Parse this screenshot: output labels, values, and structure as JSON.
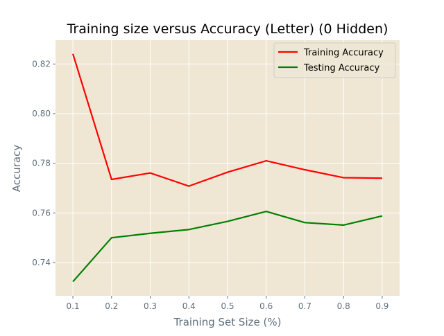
{
  "chart_data": {
    "type": "line",
    "title": "Training size versus Accuracy (Letter) (0 Hidden)",
    "xlabel": "Training Set Size (%)",
    "ylabel": "Accuracy",
    "x": [
      0.1,
      0.2,
      0.3,
      0.4,
      0.5,
      0.6,
      0.7,
      0.8,
      0.9
    ],
    "x_tick_labels": [
      "0.1",
      "0.2",
      "0.3",
      "0.4",
      "0.5",
      "0.6",
      "0.7",
      "0.8",
      "0.9"
    ],
    "y_ticks": [
      0.74,
      0.76,
      0.78,
      0.8,
      0.82
    ],
    "y_tick_labels": [
      "0.74",
      "0.76",
      "0.78",
      "0.80",
      "0.82"
    ],
    "xlim": [
      0.055,
      0.945
    ],
    "ylim": [
      0.7266,
      0.8296
    ],
    "grid": true,
    "legend_position": "top-right",
    "series": [
      {
        "name": "Training Accuracy",
        "color": "#ff0000",
        "values": [
          0.8241,
          0.7735,
          0.7761,
          0.7708,
          0.7764,
          0.781,
          0.7774,
          0.7742,
          0.774
        ]
      },
      {
        "name": "Testing Accuracy",
        "color": "#008000",
        "values": [
          0.7323,
          0.75,
          0.7518,
          0.7533,
          0.7566,
          0.7606,
          0.7561,
          0.7551,
          0.7588
        ]
      }
    ],
    "style": {
      "plot_background": "#efe7d4",
      "grid_color": "#ffffff",
      "tick_label_color": "#5f6f7c",
      "axis_label_color": "#5f6f7c"
    }
  }
}
